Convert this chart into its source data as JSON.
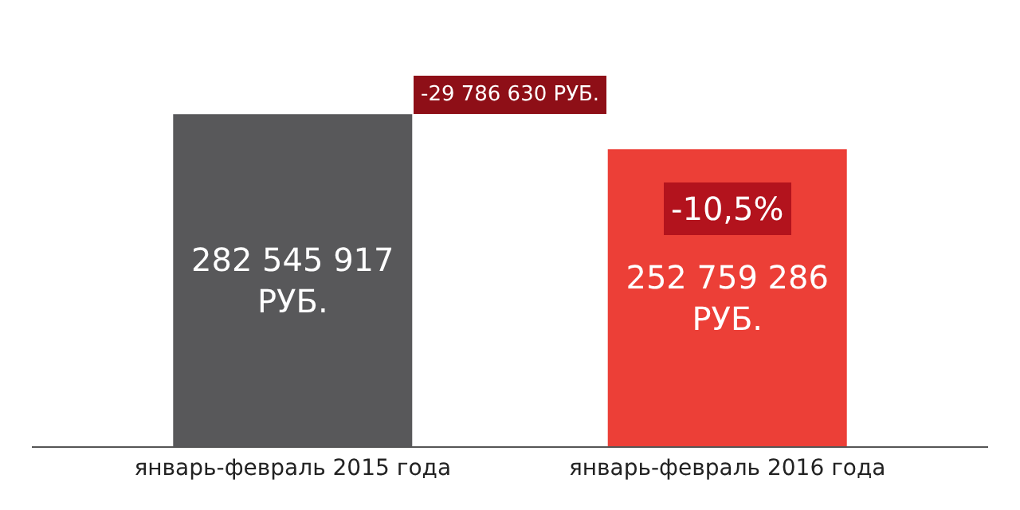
{
  "chart_data": {
    "type": "bar",
    "categories": [
      "январь-февраль 2015 года",
      "январь-февраль 2016 года"
    ],
    "values": [
      282545917,
      252759286
    ],
    "colors": [
      "#58585a",
      "#ec3f37"
    ],
    "value_labels": [
      "282 545 917\nРУБ.",
      "252 759 286\nРУБ."
    ],
    "annotations": [
      "-29 786 630 РУБ.",
      "-10,5%"
    ]
  }
}
